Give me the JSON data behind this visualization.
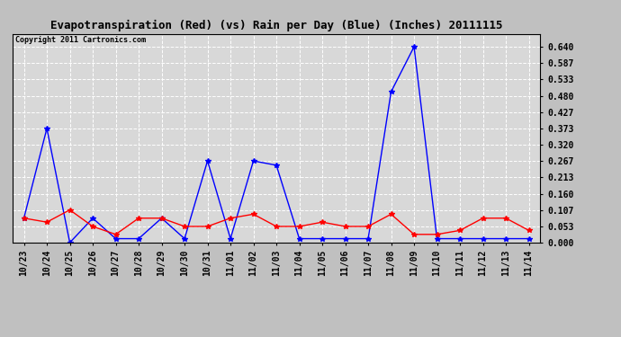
{
  "title": "Evapotranspiration (Red) (vs) Rain per Day (Blue) (Inches) 20111115",
  "copyright": "Copyright 2011 Cartronics.com",
  "x_labels": [
    "10/23",
    "10/24",
    "10/25",
    "10/26",
    "10/27",
    "10/28",
    "10/29",
    "10/30",
    "10/31",
    "11/01",
    "11/02",
    "11/03",
    "11/04",
    "11/05",
    "11/06",
    "11/07",
    "11/08",
    "11/09",
    "11/10",
    "11/11",
    "11/12",
    "11/13",
    "11/14"
  ],
  "blue_values": [
    0.08,
    0.373,
    0.0,
    0.08,
    0.013,
    0.013,
    0.08,
    0.013,
    0.267,
    0.013,
    0.267,
    0.253,
    0.013,
    0.013,
    0.013,
    0.013,
    0.493,
    0.64,
    0.013,
    0.013,
    0.013,
    0.013,
    0.013
  ],
  "red_values": [
    0.08,
    0.067,
    0.107,
    0.053,
    0.027,
    0.08,
    0.08,
    0.053,
    0.053,
    0.08,
    0.093,
    0.053,
    0.053,
    0.067,
    0.053,
    0.053,
    0.093,
    0.027,
    0.027,
    0.04,
    0.08,
    0.08,
    0.04
  ],
  "ylim": [
    0.0,
    0.6827
  ],
  "yticks": [
    0.0,
    0.053,
    0.107,
    0.16,
    0.213,
    0.267,
    0.32,
    0.373,
    0.427,
    0.48,
    0.533,
    0.587,
    0.64
  ],
  "blue_color": "#0000FF",
  "red_color": "#FF0000",
  "bg_color": "#C0C0C0",
  "plot_bg_color": "#D8D8D8",
  "grid_color": "#FFFFFF",
  "title_fontsize": 9,
  "copyright_fontsize": 6,
  "tick_fontsize": 7
}
